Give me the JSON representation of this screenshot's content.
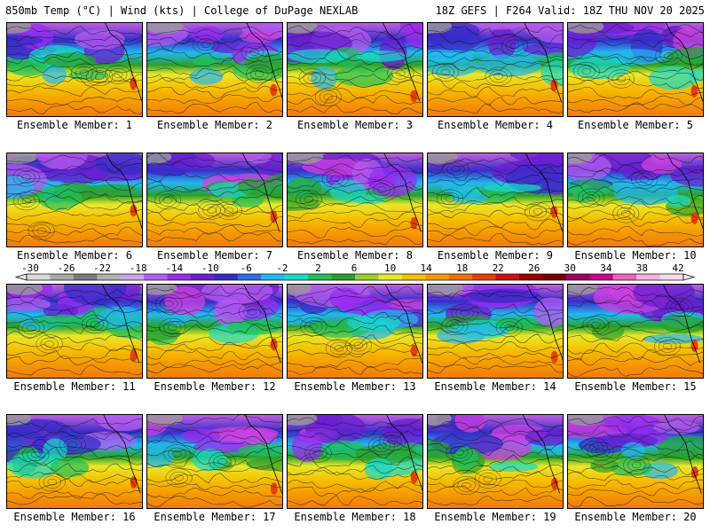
{
  "header": {
    "left": "850mb Temp (°C) | Wind (kts) | College of DuPage NEXLAB",
    "right": "18Z GEFS | F264 Valid: 18Z THU NOV 20 2025"
  },
  "panels": [
    {
      "label": "Ensemble Member: 1"
    },
    {
      "label": "Ensemble Member: 2"
    },
    {
      "label": "Ensemble Member: 3"
    },
    {
      "label": "Ensemble Member: 4"
    },
    {
      "label": "Ensemble Member: 5"
    },
    {
      "label": "Ensemble Member: 6"
    },
    {
      "label": "Ensemble Member: 7"
    },
    {
      "label": "Ensemble Member: 8"
    },
    {
      "label": "Ensemble Member: 9"
    },
    {
      "label": "Ensemble Member: 10"
    },
    {
      "label": "Ensemble Member: 11"
    },
    {
      "label": "Ensemble Member: 12"
    },
    {
      "label": "Ensemble Member: 13"
    },
    {
      "label": "Ensemble Member: 14"
    },
    {
      "label": "Ensemble Member: 15"
    },
    {
      "label": "Ensemble Member: 16"
    },
    {
      "label": "Ensemble Member: 17"
    },
    {
      "label": "Ensemble Member: 18"
    },
    {
      "label": "Ensemble Member: 19"
    },
    {
      "label": "Ensemble Member: 20"
    }
  ],
  "colorbar": {
    "labels": [
      "-30",
      "-26",
      "-22",
      "-18",
      "-14",
      "-10",
      "-6",
      "-2",
      "2",
      "6",
      "10",
      "14",
      "18",
      "22",
      "26",
      "30",
      "34",
      "38",
      "42"
    ],
    "colors": [
      "#d8d8d8",
      "#a8a8a8",
      "#7a7a7a",
      "#b0b0b0",
      "#c9a5e8",
      "#b35cf0",
      "#9a2bf0",
      "#6a1fd0",
      "#3a2cc8",
      "#2f6fe8",
      "#22b8f0",
      "#18d8c8",
      "#1fbf5a",
      "#2aa02a",
      "#9ccf2a",
      "#e8e82a",
      "#f5c000",
      "#f59a00",
      "#f07000",
      "#e84000",
      "#d01010",
      "#a00000",
      "#7a0000",
      "#a0005a",
      "#d00090",
      "#f060c0",
      "#f5b0e0",
      "#fbd8f0"
    ]
  }
}
